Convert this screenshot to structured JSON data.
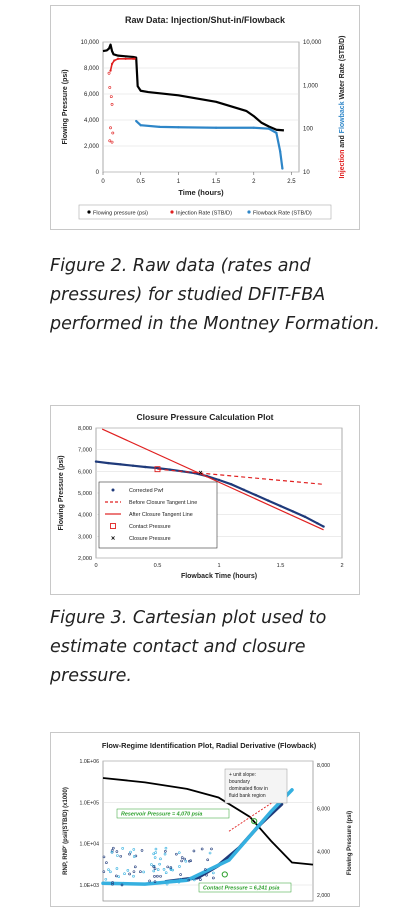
{
  "figures": [
    {
      "id": "fig2",
      "chart_data": {
        "type": "line",
        "title": "Raw Data: Injection/Shut-in/Flowback",
        "xlabel": "Time (hours)",
        "ylabel": "Flowing Pressure (psi)",
        "ylabel_right_parts": [
          "Injection",
          " and ",
          "Flowback",
          " Water Rate (STB/D)"
        ],
        "x_ticks": [
          "0",
          "0.5",
          "1",
          "1.5",
          "2",
          "2.5"
        ],
        "y_ticks": [
          "0",
          "2,000",
          "4,000",
          "6,000",
          "8,000",
          "10,000"
        ],
        "y2_ticks": [
          "10",
          "100",
          "1,000",
          "10,000"
        ],
        "xlim": [
          0,
          2.6
        ],
        "ylim": [
          0,
          10000
        ],
        "y2lim": [
          10,
          10000
        ],
        "y2_scale": "log",
        "legend": [
          "Flowing pressure (psi)",
          "Injection Rate (STB/D)",
          "Flowback Rate (STB/D)"
        ],
        "legend_placement": "bottom",
        "series": [
          {
            "name": "Flowing pressure (psi)",
            "color": "#000000",
            "x": [
              0,
              0.05,
              0.08,
              0.1,
              0.12,
              0.14,
              0.2,
              0.3,
              0.4,
              0.44,
              0.46,
              0.5,
              0.6,
              1.0,
              1.5,
              1.9,
              2.0,
              2.1,
              2.2,
              2.3,
              2.4
            ],
            "y": [
              9300,
              9350,
              9500,
              9800,
              9300,
              9050,
              8950,
              8900,
              8850,
              8800,
              6600,
              6250,
              6150,
              5900,
              5400,
              4700,
              4300,
              3800,
              3500,
              3250,
              3200
            ]
          },
          {
            "name": "Injection Rate (STB/D)",
            "color": "#e02020",
            "x": [
              0.1,
              0.12,
              0.15,
              0.2,
              0.3,
              0.4,
              0.42
            ],
            "y": [
              3000,
              3200,
              3300,
              3350,
              3350,
              3350,
              3350
            ]
          },
          {
            "name": "Flowback Rate (STB/D)",
            "color": "#2e86c8",
            "x": [
              0.44,
              0.5,
              0.75,
              1.0,
              1.5,
              2.0,
              2.2,
              2.3,
              2.35,
              2.38
            ],
            "y": [
              150,
              120,
              110,
              108,
              105,
              105,
              100,
              80,
              30,
              12
            ]
          }
        ]
      },
      "caption": "Figure 2. Raw data (rates and pressures) for studied DFIT-FBA performed in the Montney Formation."
    },
    {
      "id": "fig3",
      "chart_data": {
        "type": "scatter",
        "title": "Closure Pressure Calculation Plot",
        "xlabel": "Flowback Time (hours)",
        "ylabel": "Flowing Pressure (psi)",
        "x_ticks": [
          "0",
          "0.5",
          "1",
          "1.5",
          "2"
        ],
        "y_ticks": [
          "2,000",
          "3,000",
          "4,000",
          "5,000",
          "6,000",
          "7,000",
          "8,000"
        ],
        "xlim": [
          0,
          2
        ],
        "ylim": [
          2000,
          8000
        ],
        "legend": [
          "Corrected Pwf",
          "Before Closure Tangent Line",
          "After Closure Tangent Line",
          "Contact Pressure",
          "Closure Pressure"
        ],
        "legend_placement": "bottom-left",
        "series": [
          {
            "name": "Corrected Pwf",
            "color": "#1f3a7a",
            "x": [
              0,
              0.1,
              0.2,
              0.3,
              0.4,
              0.5,
              0.6,
              0.7,
              0.8,
              0.9,
              1.0,
              1.1,
              1.2,
              1.3,
              1.4,
              1.5,
              1.6,
              1.7,
              1.8,
              1.85
            ],
            "y": [
              6450,
              6380,
              6320,
              6260,
              6200,
              6150,
              6080,
              6000,
              5920,
              5780,
              5600,
              5400,
              5150,
              4900,
              4650,
              4400,
              4150,
              3900,
              3600,
              3450
            ]
          },
          {
            "name": "Before Closure Tangent Line",
            "color": "#e02020",
            "x": [
              0.5,
              1.85
            ],
            "y": [
              6100,
              5400
            ]
          },
          {
            "name": "After Closure Tangent Line",
            "color": "#e02020",
            "x": [
              0.05,
              1.85
            ],
            "y": [
              7950,
              3300
            ]
          },
          {
            "name": "Contact Pressure",
            "color": "#e02020",
            "x": [
              0.5
            ],
            "y": [
              6100
            ]
          },
          {
            "name": "Closure Pressure",
            "color": "#000000",
            "x": [
              0.85
            ],
            "y": [
              5950
            ]
          }
        ]
      },
      "caption": "Figure 3. Cartesian plot used to estimate contact and closure pressure."
    },
    {
      "id": "fig4",
      "chart_data": {
        "type": "scatter",
        "title": "Flow-Regime Identification Plot, Radial Derivative (Flowback)",
        "ylabel": "RNP, RNP' (psi/(STB/D) (x1000)",
        "ylabel_right": "Flowing Pressure (psi)",
        "y_ticks": [
          "1.0E+03",
          "1.0E+04",
          "1.0E+05",
          "1.0E+06"
        ],
        "y2_ticks": [
          "2,000",
          "4,000",
          "6,000",
          "8,000"
        ],
        "ylim": [
          1000,
          1000000
        ],
        "y_scale": "log",
        "y2lim": [
          0,
          8000
        ],
        "annotations": {
          "unit_slope": "+ unit slope:\nboundary\ndominated flow in\nfluid bank region",
          "reservoir_pressure": "Reservoir Pressure = 4,070 psia",
          "contact_pressure": "Contact Pressure = 6,241 psia"
        },
        "series": [
          {
            "name": "",
            "color": "#000000",
            "x": [
              0,
              0.2,
              0.4,
              0.55,
              0.7,
              0.8,
              0.9,
              1.0
            ],
            "y": [
              7400,
              7200,
              6900,
              6500,
              5600,
              4500,
              3500,
              3400
            ]
          },
          {
            "name": "",
            "color": "#1f3a7a",
            "x": [
              0.3,
              0.45,
              0.55,
              0.65,
              0.75,
              0.85
            ],
            "y": [
              1200,
              1500,
              3000,
              8000,
              30000,
              90000
            ]
          },
          {
            "name": "",
            "color": "#35b0e0",
            "x": [
              0.0,
              0.2,
              0.4,
              0.6,
              0.8,
              0.9
            ],
            "y": [
              1100,
              1050,
              1300,
              4000,
              60000,
              200000
            ]
          }
        ]
      }
    }
  ],
  "colors": {
    "pressure": "#000000",
    "injection": "#e02020",
    "flowback": "#2e86c8",
    "light_blue": "#35b0e0",
    "navy": "#1f3a7a",
    "grid": "#d9d9d9",
    "annotation_green": "#2ca02c"
  }
}
